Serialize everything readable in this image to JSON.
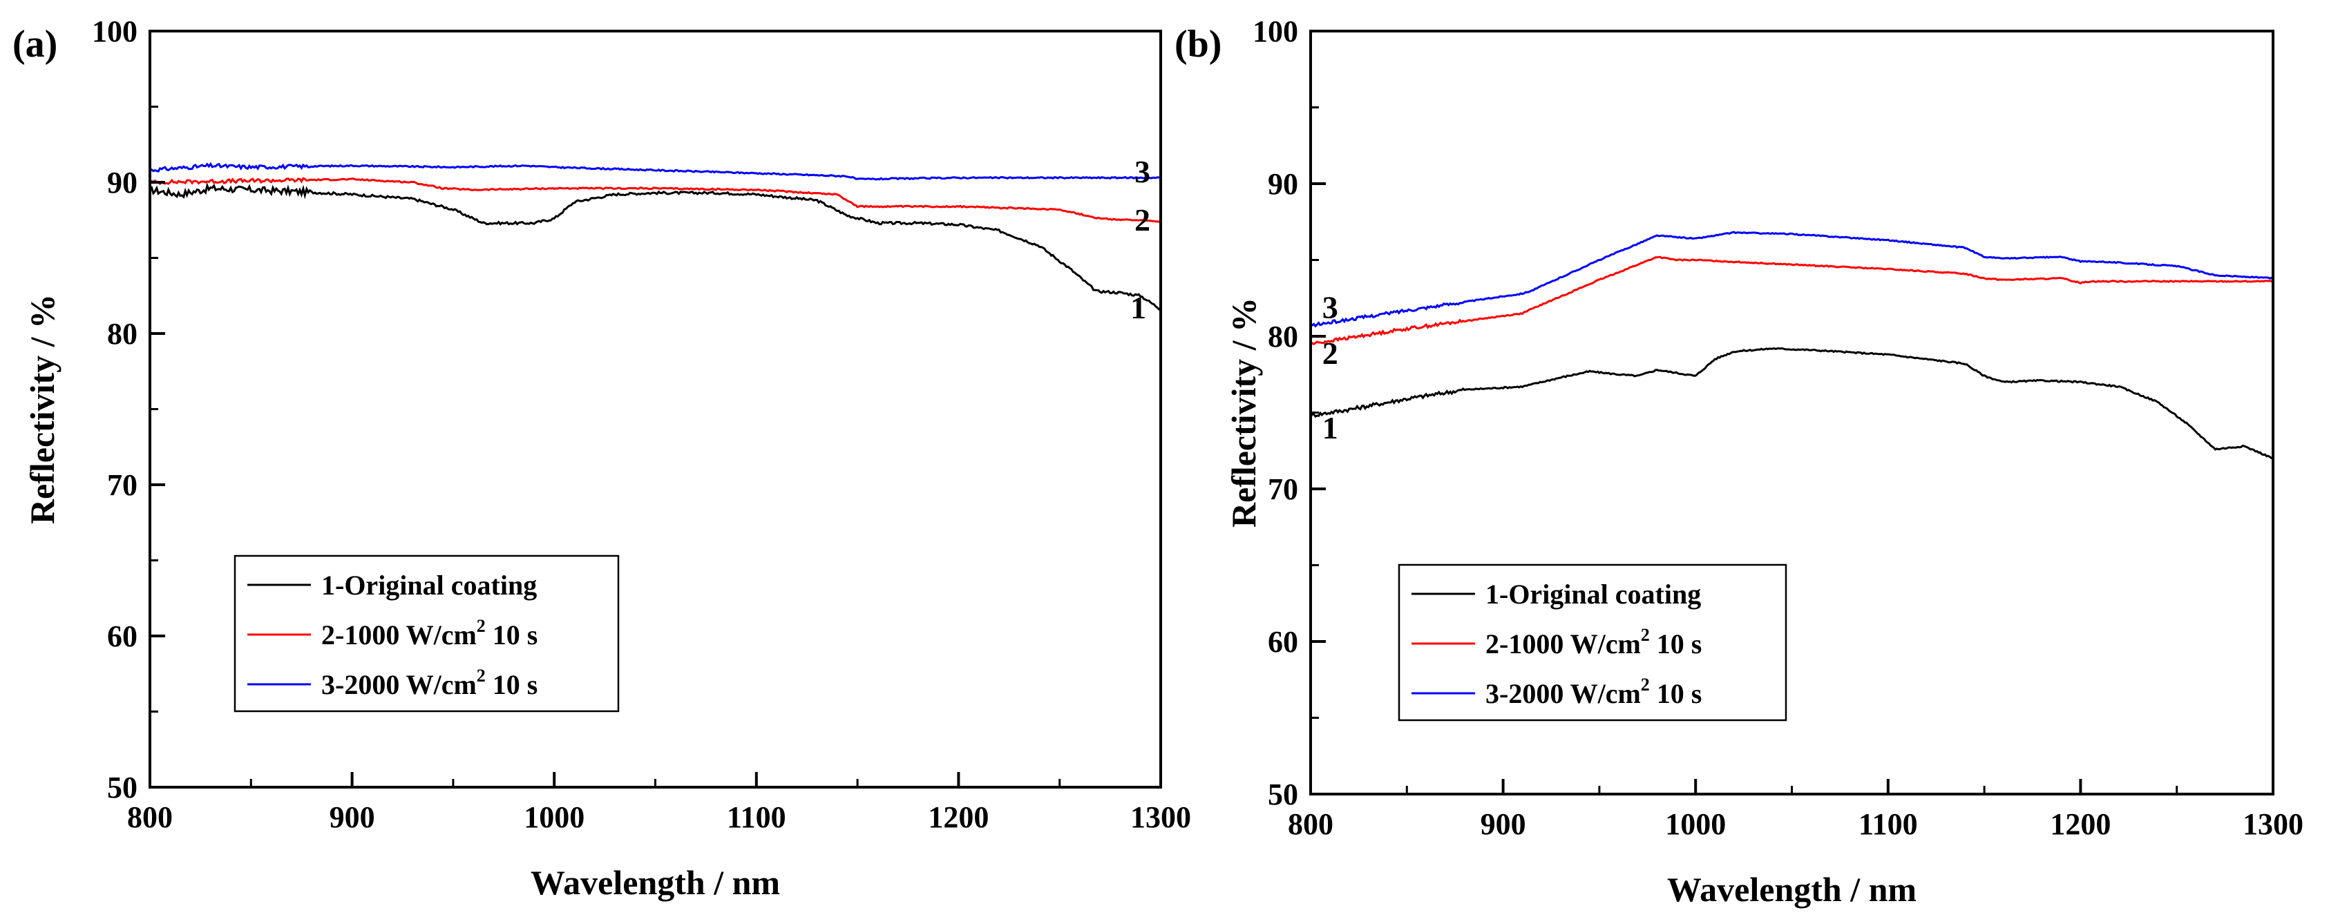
{
  "chart_data": [
    {
      "panel": "(a)",
      "type": "line",
      "xlabel": "Wavelength / nm",
      "ylabel": "Reflectivity / %",
      "xlim": [
        800,
        1300
      ],
      "ylim": [
        50,
        100
      ],
      "xticks": [
        800,
        900,
        1000,
        1100,
        1200,
        1300
      ],
      "yticks": [
        50,
        60,
        70,
        80,
        90,
        100
      ],
      "legend_position": "bottom-left",
      "legend": [
        {
          "text": "1-Original coating",
          "sup": "",
          "suffix": ""
        },
        {
          "text": "2-1000 W/cm",
          "sup": "2",
          "suffix": " 10 s"
        },
        {
          "text": "3-2000 W/cm",
          "sup": "2",
          "suffix": " 10 s"
        }
      ],
      "series": [
        {
          "name": "1",
          "label": "1",
          "label_at": [
            1285,
            81.0
          ],
          "color": "#000000",
          "noise": 0.45,
          "x": [
            800,
            815,
            830,
            850,
            870,
            900,
            930,
            950,
            965,
            980,
            990,
            1000,
            1010,
            1030,
            1050,
            1080,
            1100,
            1130,
            1145,
            1160,
            1180,
            1200,
            1220,
            1240,
            1255,
            1268,
            1280,
            1290,
            1300
          ],
          "y": [
            89.5,
            89.2,
            89.6,
            89.5,
            89.4,
            89.2,
            88.9,
            88.2,
            87.3,
            87.3,
            87.3,
            87.6,
            88.7,
            89.2,
            89.3,
            89.3,
            89.2,
            88.8,
            87.8,
            87.3,
            87.3,
            87.2,
            86.8,
            85.8,
            84.3,
            82.8,
            82.7,
            82.5,
            81.6
          ]
        },
        {
          "name": "2",
          "label": "2",
          "label_at": [
            1287,
            86.8
          ],
          "color": "#ff0000",
          "noise": 0.25,
          "x": [
            800,
            850,
            900,
            930,
            945,
            960,
            1000,
            1050,
            1100,
            1140,
            1150,
            1200,
            1250,
            1270,
            1300
          ],
          "y": [
            90.0,
            90.1,
            90.2,
            90.0,
            89.6,
            89.5,
            89.6,
            89.6,
            89.5,
            89.2,
            88.4,
            88.4,
            88.2,
            87.6,
            87.4
          ]
        },
        {
          "name": "3",
          "label": "3",
          "label_at": [
            1287,
            90.0
          ],
          "color": "#0000ff",
          "noise": 0.25,
          "x": [
            800,
            830,
            850,
            900,
            950,
            985,
            1000,
            1050,
            1100,
            1145,
            1150,
            1200,
            1250,
            1300
          ],
          "y": [
            90.8,
            91.1,
            91.0,
            91.1,
            91.0,
            91.1,
            91.0,
            90.8,
            90.6,
            90.4,
            90.2,
            90.3,
            90.3,
            90.3
          ]
        }
      ]
    },
    {
      "panel": "(b)",
      "type": "line",
      "xlabel": "Wavelength / nm",
      "ylabel": "Reflectivity / %",
      "xlim": [
        800,
        1300
      ],
      "ylim": [
        50,
        100
      ],
      "xticks": [
        800,
        900,
        1000,
        1100,
        1200,
        1300
      ],
      "yticks": [
        50,
        60,
        70,
        80,
        90,
        100
      ],
      "legend_position": "bottom-left",
      "legend": [
        {
          "text": "1-Original coating",
          "sup": "",
          "suffix": ""
        },
        {
          "text": "2-1000 W/cm",
          "sup": "2",
          "suffix": " 10 s"
        },
        {
          "text": "3-2000 W/cm",
          "sup": "2",
          "suffix": " 10 s"
        }
      ],
      "series": [
        {
          "name": "1",
          "label": "1",
          "label_at": [
            806,
            73.3
          ],
          "color": "#000000",
          "noise": 0.25,
          "x": [
            800,
            820,
            850,
            880,
            910,
            930,
            945,
            960,
            970,
            980,
            990,
            1000,
            1010,
            1020,
            1040,
            1060,
            1100,
            1140,
            1150,
            1160,
            1180,
            1200,
            1220,
            1240,
            1255,
            1270,
            1285,
            1300
          ],
          "y": [
            74.8,
            75.2,
            75.9,
            76.5,
            76.7,
            77.3,
            77.7,
            77.5,
            77.4,
            77.8,
            77.6,
            77.4,
            78.5,
            79.0,
            79.2,
            79.1,
            78.8,
            78.2,
            77.4,
            77.0,
            77.1,
            77.0,
            76.7,
            75.7,
            74.3,
            72.6,
            72.8,
            72.0
          ]
        },
        {
          "name": "2",
          "label": "2",
          "label_at": [
            806,
            78.2
          ],
          "color": "#ff0000",
          "noise": 0.2,
          "x": [
            800,
            850,
            910,
            915,
            950,
            980,
            990,
            1000,
            1050,
            1100,
            1140,
            1150,
            1160,
            1190,
            1200,
            1205,
            1250,
            1300
          ],
          "y": [
            79.5,
            80.5,
            81.5,
            81.8,
            83.7,
            85.2,
            85.0,
            85.0,
            84.7,
            84.4,
            84.1,
            83.8,
            83.7,
            83.8,
            83.5,
            83.6,
            83.6,
            83.6
          ]
        },
        {
          "name": "3",
          "label": "3",
          "label_at": [
            806,
            81.2
          ],
          "color": "#0000ff",
          "noise": 0.2,
          "x": [
            800,
            850,
            910,
            915,
            950,
            980,
            1000,
            1020,
            1050,
            1100,
            1140,
            1150,
            1160,
            1190,
            1200,
            1210,
            1250,
            1270,
            1300
          ],
          "y": [
            80.7,
            81.7,
            82.8,
            83.0,
            85.0,
            86.6,
            86.4,
            86.8,
            86.7,
            86.3,
            85.8,
            85.2,
            85.1,
            85.2,
            84.9,
            84.9,
            84.6,
            84.0,
            83.8
          ]
        }
      ]
    }
  ]
}
